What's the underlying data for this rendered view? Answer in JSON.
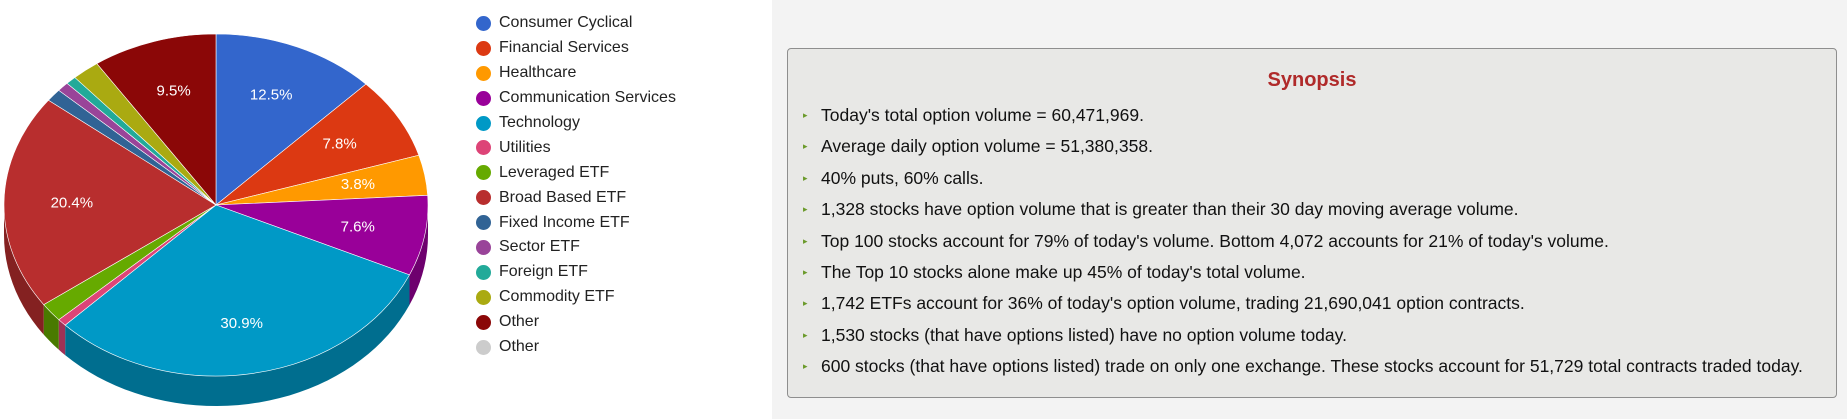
{
  "chart_data": {
    "type": "pie",
    "is_3d": true,
    "legend_position": "right",
    "title": "",
    "slices": [
      {
        "name": "Consumer Cyclical",
        "value": 12.5,
        "label": "12.5%",
        "color": "#3366cc"
      },
      {
        "name": "Financial Services",
        "value": 7.8,
        "label": "7.8%",
        "color": "#dc3912"
      },
      {
        "name": "Healthcare",
        "value": 3.8,
        "label": "3.8%",
        "color": "#ff9900"
      },
      {
        "name": "Communication Services",
        "value": 7.6,
        "label": "7.6%",
        "color": "#990099"
      },
      {
        "name": "Technology",
        "value": 30.9,
        "label": "30.9%",
        "color": "#0099c6"
      },
      {
        "name": "Utilities",
        "value": 0.7,
        "label": "",
        "color": "#dd4477"
      },
      {
        "name": "Leveraged ETF",
        "value": 1.8,
        "label": "",
        "color": "#66aa00"
      },
      {
        "name": "Broad Based ETF",
        "value": 20.4,
        "label": "20.4%",
        "color": "#b82e2e"
      },
      {
        "name": "Fixed Income ETF",
        "value": 1.2,
        "label": "",
        "color": "#316395"
      },
      {
        "name": "Sector ETF",
        "value": 0.9,
        "label": "",
        "color": "#994499"
      },
      {
        "name": "Foreign ETF",
        "value": 0.8,
        "label": "",
        "color": "#22aa99"
      },
      {
        "name": "Commodity ETF",
        "value": 2.1,
        "label": "",
        "color": "#aaaa11"
      },
      {
        "name": "Other",
        "value": 9.5,
        "label": "9.5%",
        "color": "#8b0707"
      },
      {
        "name": "Other",
        "value": 0,
        "label": "",
        "color": "#cccccc"
      }
    ]
  },
  "synopsis": {
    "title": "Synopsis",
    "items": [
      "Today's total option volume = 60,471,969.",
      "Average daily option volume = 51,380,358.",
      "40% puts, 60% calls.",
      "1,328 stocks have option volume that is greater than their 30 day moving average volume.",
      "Top 100 stocks account for 79% of today's volume. Bottom 4,072 accounts for 21% of today's volume.",
      "The Top 10 stocks alone make up 45% of today's total volume.",
      "1,742 ETFs account for 36% of today's option volume, trading 21,690,041 option contracts.",
      "1,530 stocks (that have options listed) have no option volume today.",
      "600 stocks (that have options listed) trade on only one exchange. These stocks account for 51,729 total contracts traded today."
    ]
  }
}
